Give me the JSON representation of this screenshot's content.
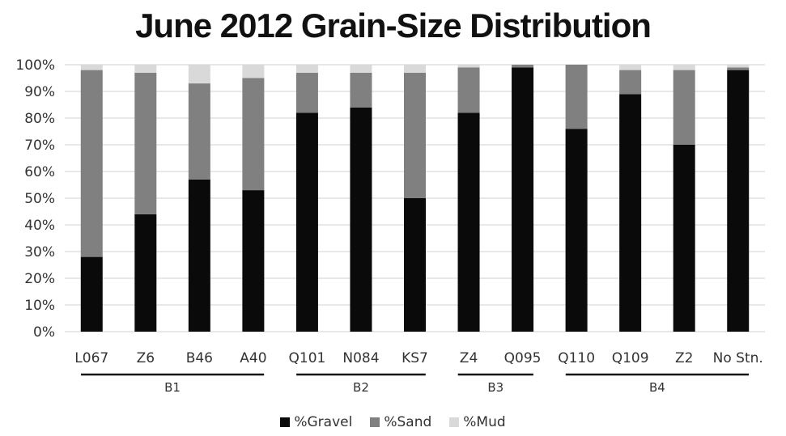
{
  "chart_data": {
    "type": "bar",
    "stacked": true,
    "title": "June 2012 Grain-Size Distribution",
    "categories": [
      "L067",
      "Z6",
      "B46",
      "A40",
      "Q101",
      "N084",
      "KS7",
      "Z4",
      "Q095",
      "Q110",
      "Q109",
      "Z2",
      "No Stn."
    ],
    "groups": [
      {
        "label": "B1",
        "categories": [
          "L067",
          "Z6",
          "B46",
          "A40"
        ]
      },
      {
        "label": "B2",
        "categories": [
          "Q101",
          "N084",
          "KS7"
        ]
      },
      {
        "label": "B3",
        "categories": [
          "Z4",
          "Q095"
        ]
      },
      {
        "label": "B4",
        "categories": [
          "Q110",
          "Q109",
          "Z2",
          "No Stn."
        ]
      }
    ],
    "series": [
      {
        "name": "%Gravel",
        "color": "#0a0a0a",
        "values": [
          28,
          44,
          57,
          53,
          82,
          84,
          50,
          82,
          99,
          76,
          89,
          70,
          98
        ]
      },
      {
        "name": "%Sand",
        "color": "#808080",
        "values": [
          70,
          53,
          36,
          42,
          15,
          13,
          47,
          17,
          1,
          24,
          9,
          28,
          1
        ]
      },
      {
        "name": "%Mud",
        "color": "#d9d9d9",
        "values": [
          2,
          3,
          7,
          5,
          3,
          3,
          3,
          1,
          0,
          0,
          2,
          2,
          1
        ]
      }
    ],
    "y_ticks": [
      "0%",
      "10%",
      "20%",
      "30%",
      "40%",
      "50%",
      "60%",
      "70%",
      "80%",
      "90%",
      "100%"
    ],
    "ylim": [
      0,
      100
    ],
    "grid": true,
    "legend_position": "bottom"
  }
}
